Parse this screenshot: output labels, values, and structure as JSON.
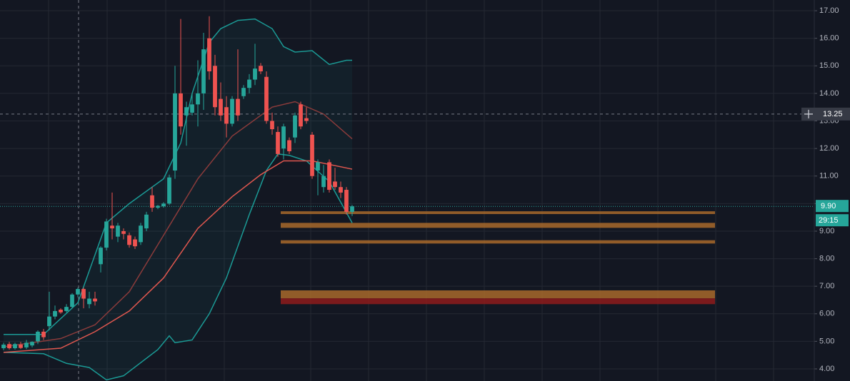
{
  "chart_data": {
    "type": "candlestick",
    "open": [
      4.75,
      4.9,
      4.75,
      4.88,
      4.78,
      4.85,
      5.0,
      5.35,
      5.55,
      5.9,
      6.15,
      6.1,
      6.25,
      6.7,
      6.9,
      6.35,
      6.55,
      7.8,
      8.4,
      9.2,
      8.8,
      9.0,
      8.85,
      8.7,
      8.6,
      9.1,
      10.3,
      9.85,
      9.9,
      10.0,
      11.2,
      14.0,
      13.2,
      13.3,
      13.6,
      14.0,
      16.0,
      15.0,
      13.8,
      13.5,
      12.9,
      13.8,
      13.9,
      14.2,
      14.5,
      15.0,
      14.6,
      13.0,
      12.6,
      12.0,
      12.3,
      12.4,
      13.6,
      13.1,
      12.5,
      11.2,
      10.6,
      11.5,
      10.8,
      10.6,
      10.5,
      9.7
    ],
    "high": [
      4.95,
      4.98,
      4.95,
      4.98,
      5.05,
      5.0,
      5.4,
      5.45,
      6.8,
      6.3,
      6.2,
      6.35,
      6.75,
      6.95,
      6.95,
      6.8,
      6.8,
      8.45,
      9.45,
      10.4,
      9.3,
      9.1,
      8.95,
      8.8,
      9.3,
      9.7,
      10.6,
      9.95,
      10.05,
      11.05,
      15.0,
      16.7,
      13.7,
      14.0,
      15.2,
      16.2,
      16.8,
      15.4,
      14.4,
      13.9,
      13.9,
      15.6,
      14.3,
      14.7,
      15.8,
      15.1,
      14.8,
      13.3,
      12.8,
      12.9,
      12.4,
      13.3,
      13.7,
      13.5,
      12.6,
      11.6,
      11.4,
      11.6,
      11.3,
      10.8,
      10.6,
      9.95
    ],
    "low": [
      4.68,
      4.7,
      4.7,
      4.72,
      4.72,
      4.78,
      4.9,
      5.05,
      5.4,
      5.8,
      6.0,
      6.05,
      6.2,
      6.6,
      6.2,
      6.2,
      6.3,
      7.5,
      8.3,
      8.7,
      8.6,
      8.7,
      8.4,
      8.35,
      8.5,
      9.0,
      9.7,
      9.8,
      9.85,
      9.95,
      10.9,
      12.5,
      12.1,
      13.2,
      12.8,
      13.4,
      14.5,
      13.2,
      13.0,
      12.4,
      12.8,
      13.0,
      13.8,
      14.0,
      14.3,
      14.7,
      12.9,
      12.5,
      11.7,
      11.6,
      11.8,
      12.2,
      12.7,
      12.9,
      10.9,
      10.3,
      10.4,
      10.4,
      10.5,
      10.2,
      9.6,
      9.55
    ],
    "close": [
      4.88,
      4.75,
      4.9,
      4.76,
      4.95,
      4.98,
      5.35,
      5.15,
      5.9,
      6.1,
      6.05,
      6.25,
      6.7,
      6.9,
      6.55,
      6.55,
      6.45,
      8.4,
      9.35,
      9.1,
      9.2,
      8.9,
      8.5,
      8.45,
      9.2,
      9.6,
      9.85,
      9.92,
      10.0,
      10.95,
      14.0,
      12.8,
      13.5,
      13.6,
      14.0,
      15.6,
      14.8,
      13.5,
      13.2,
      12.9,
      13.8,
      13.2,
      14.2,
      14.5,
      14.9,
      14.8,
      13.0,
      12.7,
      11.8,
      12.8,
      11.9,
      13.2,
      12.8,
      13.0,
      11.0,
      11.5,
      11.0,
      10.5,
      10.6,
      10.4,
      9.7,
      9.9
    ],
    "up_color": "#26a69a",
    "down_color": "#ef5350",
    "xlim": [
      -0.625,
      141.875
    ],
    "ylim": [
      3.56,
      17.39
    ],
    "yticks": [
      {
        "value": 4,
        "label": "4.00"
      },
      {
        "value": 5,
        "label": "5.00"
      },
      {
        "value": 6,
        "label": "6.00"
      },
      {
        "value": 7,
        "label": "7.00"
      },
      {
        "value": 8,
        "label": "8.00"
      },
      {
        "value": 9,
        "label": "9.00"
      },
      {
        "value": 10,
        "label": "10.00"
      },
      {
        "value": 11,
        "label": "11.00"
      },
      {
        "value": 12,
        "label": "12.00"
      },
      {
        "value": 13,
        "label": "13.00"
      },
      {
        "value": 14,
        "label": "14.00"
      },
      {
        "value": 15,
        "label": "15.00"
      },
      {
        "value": 16,
        "label": "16.00"
      },
      {
        "value": 17,
        "label": "17.00"
      }
    ],
    "grid": true,
    "band_fill": "#1b8f8a",
    "lines": [
      {
        "color": "#1b9a95",
        "x": [
          0,
          7,
          13,
          18,
          22,
          28,
          31,
          33,
          36,
          38,
          41,
          44,
          47,
          49,
          51,
          54,
          57,
          60,
          61
        ],
        "values": [
          5.25,
          5.25,
          6.4,
          9.3,
          10.0,
          10.9,
          12.2,
          14.0,
          15.85,
          16.35,
          16.65,
          16.7,
          16.35,
          15.7,
          15.5,
          15.55,
          15.05,
          15.2,
          15.2
        ]
      },
      {
        "color": "#1b9a95",
        "x": [
          0,
          7,
          11,
          15,
          18,
          21,
          27,
          29,
          30,
          33,
          36,
          39,
          43,
          46,
          48,
          50,
          53,
          57,
          61
        ],
        "values": [
          4.6,
          4.55,
          4.2,
          4.05,
          3.6,
          3.75,
          4.7,
          5.2,
          4.95,
          5.05,
          6.0,
          7.3,
          9.6,
          11.2,
          11.8,
          11.75,
          11.55,
          10.8,
          9.3
        ]
      },
      {
        "color": "#8a3b3b",
        "x": [
          0,
          10,
          16,
          22,
          28,
          34,
          40,
          47,
          51,
          56,
          61
        ],
        "values": [
          4.8,
          5.1,
          5.6,
          6.8,
          8.85,
          10.9,
          12.45,
          13.5,
          13.7,
          13.25,
          12.35
        ]
      },
      {
        "color": "#e0574f",
        "x": [
          0,
          10,
          16,
          22,
          28,
          34,
          40,
          45,
          49,
          54,
          61
        ],
        "values": [
          4.6,
          4.75,
          5.35,
          6.1,
          7.3,
          9.1,
          10.25,
          11.05,
          11.55,
          11.55,
          11.25
        ]
      }
    ],
    "zones": [
      {
        "from": 9.62,
        "to": 9.72,
        "x_start": 48.5,
        "x_end": 124.5,
        "color": "#a8682a"
      },
      {
        "from": 9.12,
        "to": 9.3,
        "x_start": 48.5,
        "x_end": 124.5,
        "color": "#a8682a"
      },
      {
        "from": 8.55,
        "to": 8.67,
        "x_start": 48.5,
        "x_end": 124.5,
        "color": "#a8682a"
      },
      {
        "from": 6.56,
        "to": 6.85,
        "x_start": 48.5,
        "x_end": 124.5,
        "color": "#a8682a"
      },
      {
        "from": 6.35,
        "to": 6.56,
        "x_start": 48.5,
        "x_end": 124.5,
        "color": "#8e1b1b"
      }
    ],
    "last_price": {
      "value": 9.9,
      "label": "9.90",
      "color": "#26a69a"
    },
    "countdown": "29:15",
    "crosshair": {
      "x": 13.125,
      "y": 13.25
    }
  }
}
